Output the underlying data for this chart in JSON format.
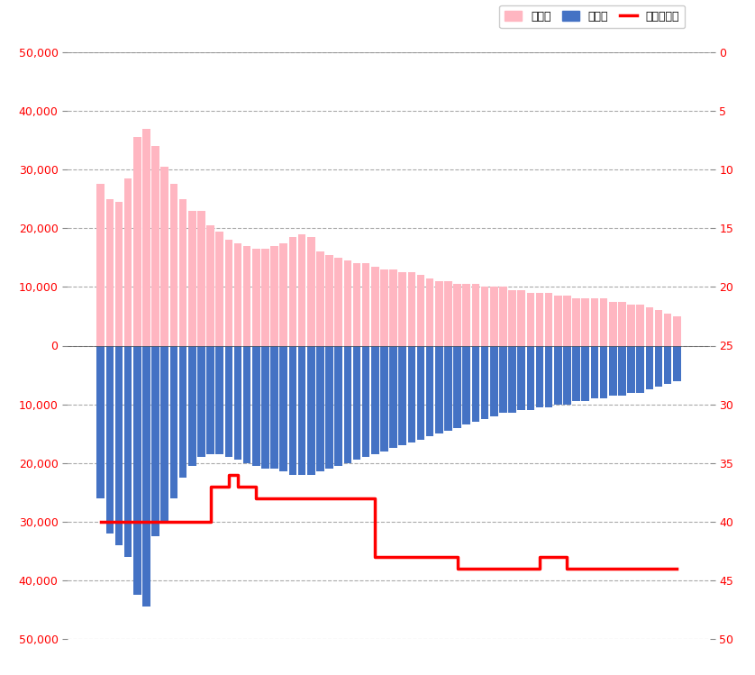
{
  "girls": [
    27500,
    25000,
    24500,
    28500,
    35500,
    37000,
    34000,
    30500,
    27500,
    25000,
    23000,
    23000,
    20500,
    19500,
    18000,
    17500,
    17000,
    16500,
    16500,
    17000,
    17500,
    18500,
    19000,
    18500,
    16000,
    15500,
    15000,
    14500,
    14000,
    14000,
    13500,
    13000,
    13000,
    12500,
    12500,
    12000,
    11500,
    11000,
    11000,
    10500,
    10500,
    10500,
    10000,
    10000,
    10000,
    9500,
    9500,
    9000,
    9000,
    9000,
    8500,
    8500,
    8000,
    8000,
    8000,
    8000,
    7500,
    7500,
    7000,
    7000,
    6500,
    6000,
    5500,
    5000
  ],
  "boys": [
    -26000,
    -32000,
    -34000,
    -36000,
    -42500,
    -44500,
    -32500,
    -30000,
    -26000,
    -22500,
    -20500,
    -19000,
    -18500,
    -18500,
    -19000,
    -19500,
    -20000,
    -20500,
    -21000,
    -21000,
    -21500,
    -22000,
    -22000,
    -22000,
    -21500,
    -21000,
    -20500,
    -20000,
    -19500,
    -19000,
    -18500,
    -18000,
    -17500,
    -17000,
    -16500,
    -16000,
    -15500,
    -15000,
    -14500,
    -14000,
    -13500,
    -13000,
    -12500,
    -12000,
    -11500,
    -11500,
    -11000,
    -11000,
    -10500,
    -10500,
    -10000,
    -10000,
    -9500,
    -9500,
    -9000,
    -9000,
    -8500,
    -8500,
    -8000,
    -8000,
    -7500,
    -7000,
    -6500,
    -6000
  ],
  "ranking": [
    40,
    40,
    40,
    40,
    40,
    40,
    40,
    40,
    40,
    40,
    40,
    40,
    37,
    37,
    36,
    37,
    37,
    38,
    38,
    38,
    38,
    38,
    38,
    38,
    38,
    38,
    38,
    38,
    38,
    38,
    43,
    43,
    43,
    43,
    43,
    43,
    43,
    43,
    43,
    44,
    44,
    44,
    44,
    44,
    44,
    44,
    44,
    44,
    43,
    43,
    43,
    44,
    44,
    44,
    44,
    44,
    44,
    44,
    44,
    44,
    44,
    44,
    44,
    44
  ],
  "bar_color_girls": "#FFB6C1",
  "bar_color_boys": "#4472C4",
  "line_color_ranking": "#FF0000",
  "background_color": "#FFFFFF",
  "grid_color": "#AAAAAA",
  "ylabel_left_color": "#FF0000",
  "ylabel_right_color": "#FF0000",
  "left_ylim": [
    -50000,
    50000
  ],
  "right_ylim": [
    50,
    0
  ],
  "right_yticks": [
    0,
    5,
    10,
    15,
    20,
    25,
    30,
    35,
    40,
    45,
    50
  ],
  "left_yticks": [
    -50000,
    -40000,
    -30000,
    -20000,
    -10000,
    0,
    10000,
    20000,
    30000,
    40000,
    50000
  ],
  "legend_girls": "女の子",
  "legend_boys": "男の子",
  "legend_ranking": "ランキング",
  "n_points": 64
}
